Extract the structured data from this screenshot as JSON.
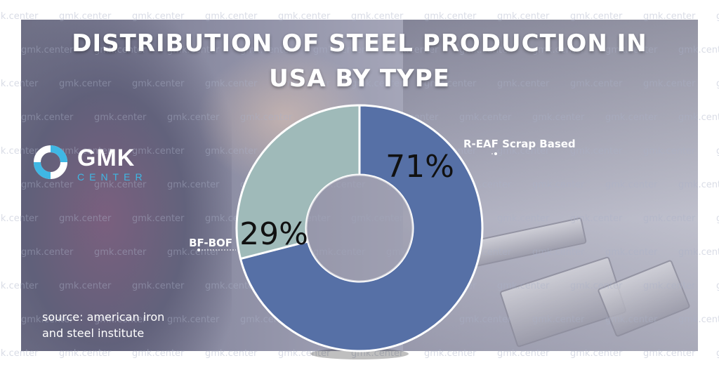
{
  "title_line1": "DISTRIBUTION OF STEEL PRODUCTION IN",
  "title_line2": "USA BY TYPE",
  "logo": {
    "main": "GMK",
    "sub": "CENTER"
  },
  "watermark": "gmk.center",
  "source_line1": "source: american iron",
  "source_line2": "and steel institute",
  "chart_data": {
    "type": "pie",
    "donut": true,
    "title": "DISTRIBUTION OF STEEL PRODUCTION IN USA BY TYPE",
    "categories": [
      "R-EAF Scrap Based",
      "BF-BOF"
    ],
    "values": [
      71,
      29
    ],
    "value_labels": [
      "71%",
      "29%"
    ],
    "colors": [
      "#5670a6",
      "#9fbab9"
    ]
  }
}
